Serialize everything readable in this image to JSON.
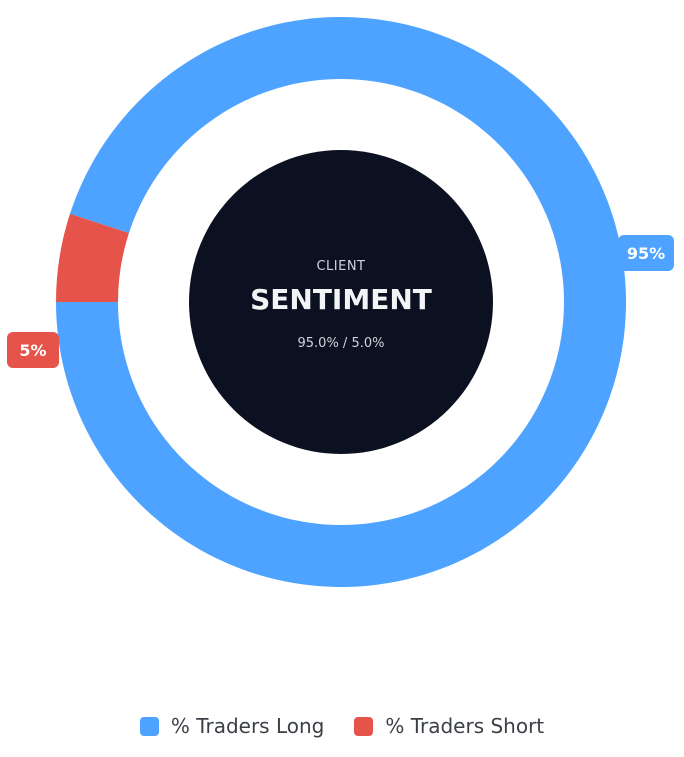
{
  "chart_data": {
    "type": "pie",
    "title": "",
    "categories": [
      "% Traders Long",
      "% Traders Short"
    ],
    "values": [
      95,
      5
    ],
    "colors": [
      "#4da3ff",
      "#e5534b"
    ],
    "data_labels": [
      "95%",
      "5%"
    ],
    "donut": true,
    "center": {
      "top_label": "CLIENT",
      "main_label": "SENTIMENT",
      "sub_label": "95.0% / 5.0%",
      "fill": "#0b1120"
    },
    "legend_position": "bottom"
  },
  "legend": {
    "items": [
      {
        "label": "% Traders Long",
        "color": "#4da3ff"
      },
      {
        "label": "% Traders Short",
        "color": "#e5534b"
      }
    ]
  }
}
